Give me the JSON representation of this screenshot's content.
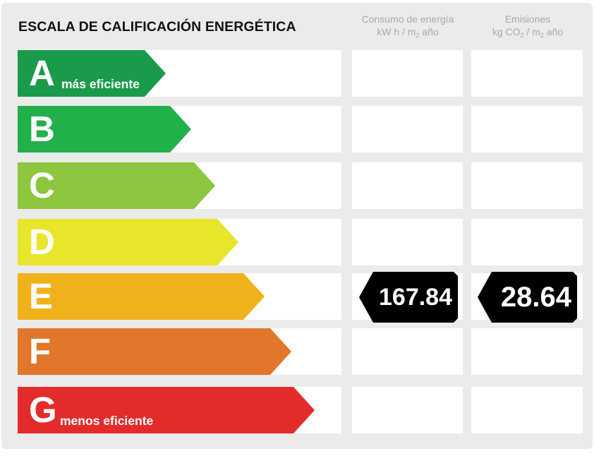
{
  "title": "ESCALA DE CALIFICACIÓN ENERGÉTICA",
  "columns": {
    "consumo": {
      "line1": "Consumo de energía",
      "line2_pre": "kW h / m",
      "line2_sub": "2",
      "line2_post": " año"
    },
    "emisiones": {
      "line1": "Emisiones",
      "line2_pre": "kg CO",
      "line2_sub": "2",
      "line2_mid": " / m",
      "line2_sub2": "2",
      "line2_post": " año"
    }
  },
  "rating_scale": [
    {
      "letter": "A",
      "tagline": "más eficiente",
      "color": "#1a9a4b"
    },
    {
      "letter": "B",
      "tagline": "",
      "color": "#22b04b"
    },
    {
      "letter": "C",
      "tagline": "",
      "color": "#8dc63f"
    },
    {
      "letter": "D",
      "tagline": "",
      "color": "#e7e62b"
    },
    {
      "letter": "E",
      "tagline": "",
      "color": "#f0b21b"
    },
    {
      "letter": "F",
      "tagline": "",
      "color": "#e2762a"
    },
    {
      "letter": "G",
      "tagline": "menos eficiente",
      "color": "#e42b2b"
    }
  ],
  "current_rating": {
    "row_letter": "E",
    "consumo_value": "167.84",
    "emisiones_value": "28.64",
    "badge_color": "#000000"
  }
}
